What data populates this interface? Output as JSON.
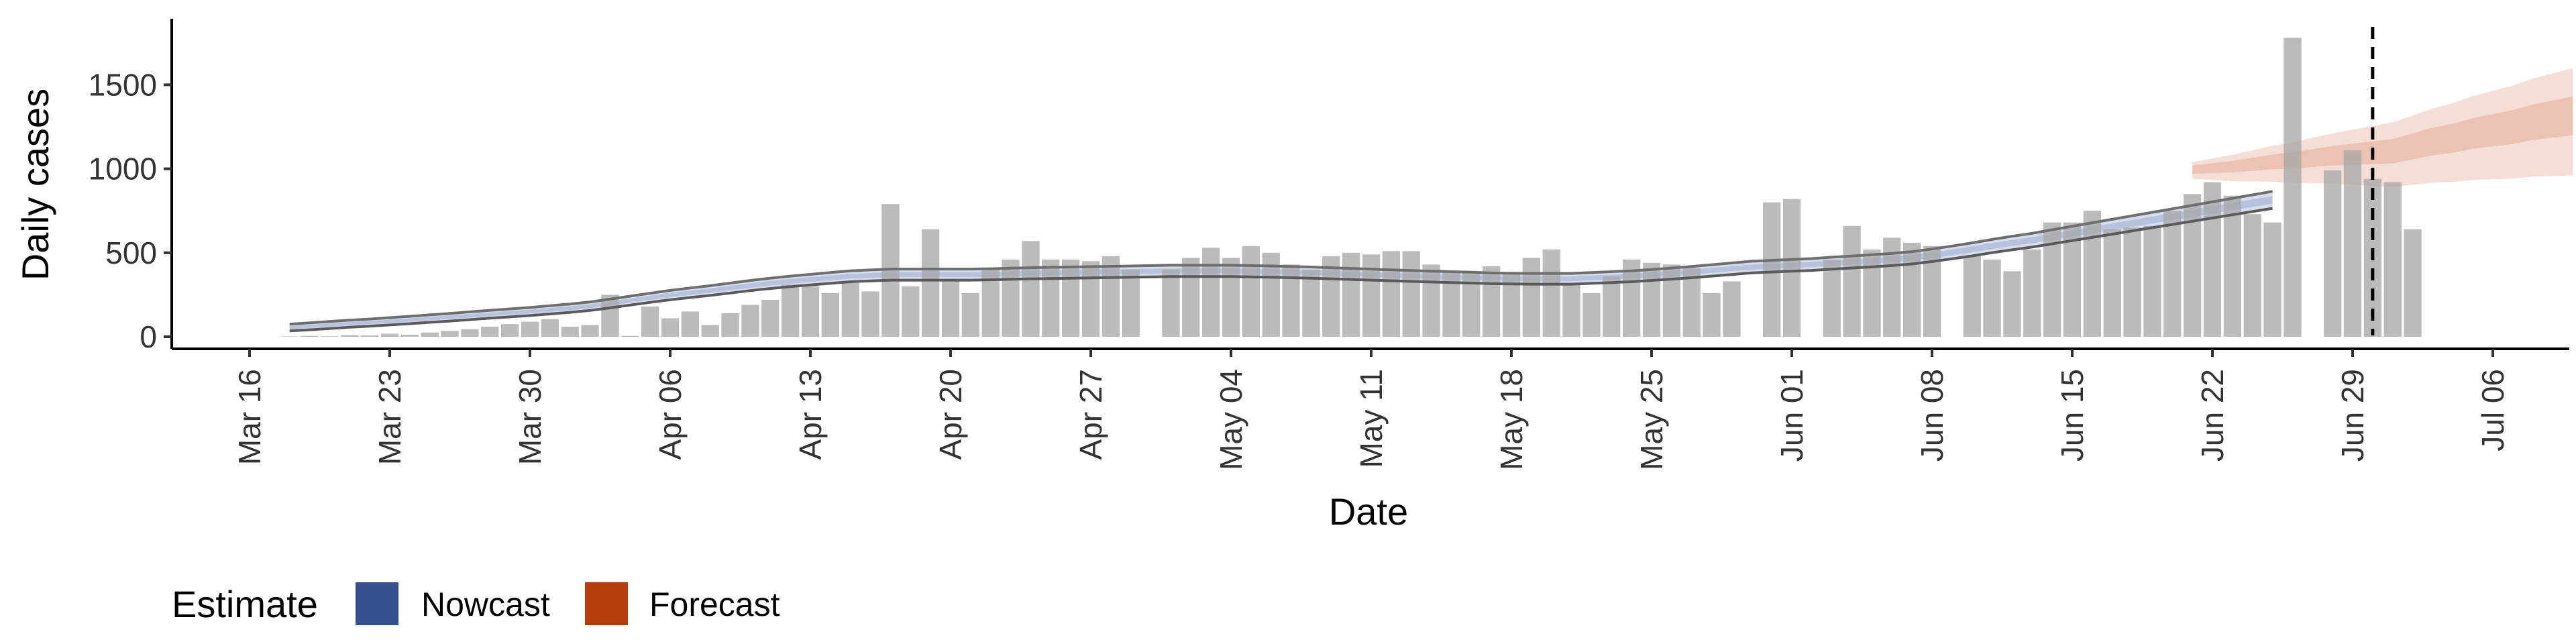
{
  "chart_data": {
    "type": "bar",
    "xlabel": "Date",
    "ylabel": "Daily cases",
    "x_tick_labels": [
      "Mar 16",
      "Mar 23",
      "Mar 30",
      "Apr 06",
      "Apr 13",
      "Apr 20",
      "Apr 27",
      "May 04",
      "May 11",
      "May 18",
      "May 25",
      "Jun 01",
      "Jun 08",
      "Jun 15",
      "Jun 22",
      "Jun 29",
      "Jul 06"
    ],
    "x_tick_dates": [
      "2020-03-16",
      "2020-03-23",
      "2020-03-30",
      "2020-04-06",
      "2020-04-13",
      "2020-04-20",
      "2020-04-27",
      "2020-05-04",
      "2020-05-11",
      "2020-05-18",
      "2020-05-25",
      "2020-06-01",
      "2020-06-08",
      "2020-06-15",
      "2020-06-22",
      "2020-06-29",
      "2020-07-06"
    ],
    "y_ticks": [
      0,
      500,
      1000,
      1500
    ],
    "y_tick_labels": [
      "0",
      "500",
      "1000",
      "1500"
    ],
    "xlim": [
      "2020-03-16",
      "2020-07-06"
    ],
    "ylim": [
      -80,
      1880
    ],
    "grid": false,
    "vline_date": "2020-06-30",
    "bars": {
      "start_date": "2020-03-18",
      "values": [
        2,
        5,
        3,
        10,
        8,
        18,
        12,
        25,
        35,
        45,
        60,
        75,
        90,
        105,
        60,
        70,
        250,
        5,
        180,
        110,
        150,
        70,
        140,
        190,
        220,
        310,
        300,
        260,
        320,
        270,
        790,
        300,
        640,
        340,
        260,
        400,
        460,
        570,
        460,
        460,
        450,
        480,
        400,
        0,
        400,
        470,
        530,
        470,
        540,
        500,
        430,
        400,
        480,
        500,
        490,
        510,
        510,
        430,
        380,
        380,
        420,
        380,
        470,
        520,
        320,
        260,
        360,
        460,
        440,
        430,
        410,
        260,
        330,
        0,
        800,
        820,
        0,
        460,
        660,
        520,
        590,
        560,
        540,
        0,
        480,
        460,
        390,
        520,
        680,
        680,
        750,
        640,
        650,
        660,
        750,
        850,
        920,
        840,
        730,
        680,
        1780,
        0,
        990,
        1110,
        940,
        920,
        640
      ]
    },
    "series": [
      {
        "name": "Nowcast",
        "color": "#354F8E",
        "start_date": "2020-03-18",
        "median": [
          55,
          62,
          70,
          78,
          84,
          92,
          100,
          108,
          116,
          125,
          134,
          142,
          150,
          160,
          170,
          182,
          198,
          215,
          232,
          248,
          262,
          275,
          290,
          305,
          318,
          330,
          340,
          350,
          360,
          365,
          370,
          370,
          370,
          370,
          370,
          372,
          375,
          378,
          380,
          382,
          384,
          386,
          388,
          390,
          392,
          392,
          392,
          392,
          390,
          388,
          385,
          382,
          378,
          374,
          370,
          366,
          362,
          358,
          355,
          352,
          348,
          346,
          345,
          345,
          345,
          350,
          355,
          360,
          368,
          376,
          385,
          395,
          405,
          415,
          420,
          425,
          430,
          438,
          445,
          452,
          460,
          470,
          485,
          502,
          520,
          540,
          558,
          575,
          595,
          615,
          635,
          655,
          675,
          695,
          715,
          735,
          755,
          775,
          795,
          815
        ]
      },
      {
        "name": "Forecast",
        "color": "#B43C08",
        "start_date": "2020-06-21",
        "median": [
          1000,
          1010,
          1020,
          1035,
          1050,
          1060,
          1075,
          1090,
          1100,
          1110,
          1120,
          1150,
          1180,
          1200,
          1230,
          1250,
          1270,
          1300,
          1320,
          1340
        ]
      }
    ],
    "legend": {
      "title": "Estimate",
      "position": "bottom-left",
      "entries": [
        {
          "label": "Nowcast",
          "color": "#354F8E"
        },
        {
          "label": "Forecast",
          "color": "#B43C08"
        }
      ]
    }
  }
}
